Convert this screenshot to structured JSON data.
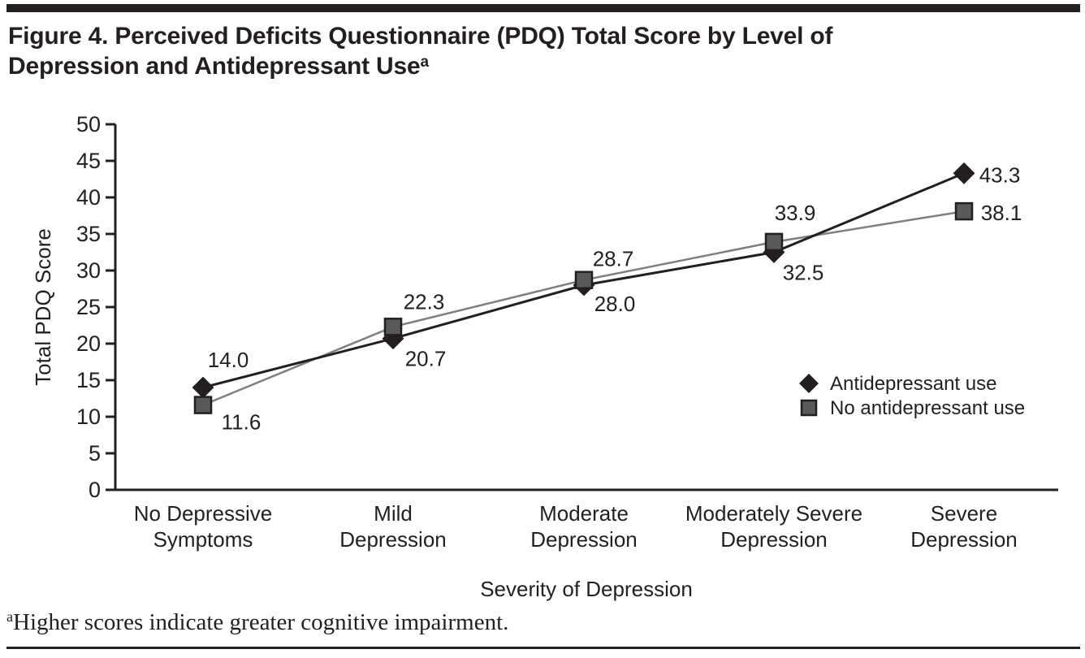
{
  "page": {
    "title_line1": "Figure 4. Perceived Deficits Questionnaire (PDQ) Total Score by Level of",
    "title_line2": "Depression and Antidepressant Use",
    "title_superscript": "a",
    "footnote_marker": "a",
    "footnote_text": "Higher scores indicate greater cognitive impairment."
  },
  "colors": {
    "ink": "#231f20",
    "antidepressant_line": "#231f20",
    "antidepressant_marker_fill": "#231f20",
    "no_antidepressant_line": "#7f7f7f",
    "no_antidepressant_marker_fill": "#595959",
    "background": "#ffffff"
  },
  "chart_data": {
    "type": "line",
    "title": "",
    "xlabel": "Severity of Depression",
    "ylabel": "Total PDQ Score",
    "ylim": [
      0,
      50
    ],
    "ytick_step": 5,
    "grid": false,
    "legend_position": "right-center",
    "categories": [
      "No Depressive Symptoms",
      "Mild Depression",
      "Moderate Depression",
      "Moderately Severe Depression",
      "Severe Depression"
    ],
    "category_label_lines": [
      [
        "No Depressive",
        "Symptoms"
      ],
      [
        "Mild",
        "Depression"
      ],
      [
        "Moderate",
        "Depression"
      ],
      [
        "Moderately Severe",
        "Depression"
      ],
      [
        "Severe",
        "Depression"
      ]
    ],
    "series": [
      {
        "name": "Antidepressant use",
        "marker": "diamond",
        "line_color": "#231f20",
        "marker_fill": "#231f20",
        "values": [
          14.0,
          20.7,
          28.0,
          32.5,
          43.3
        ],
        "value_labels": [
          "14.0",
          "20.7",
          "28.0",
          "32.5",
          "43.3"
        ]
      },
      {
        "name": "No antidepressant use",
        "marker": "square",
        "line_color": "#7f7f7f",
        "marker_fill": "#595959",
        "values": [
          11.6,
          22.3,
          28.7,
          33.9,
          38.1
        ],
        "value_labels": [
          "11.6",
          "22.3",
          "28.7",
          "33.9",
          "38.1"
        ]
      }
    ]
  }
}
